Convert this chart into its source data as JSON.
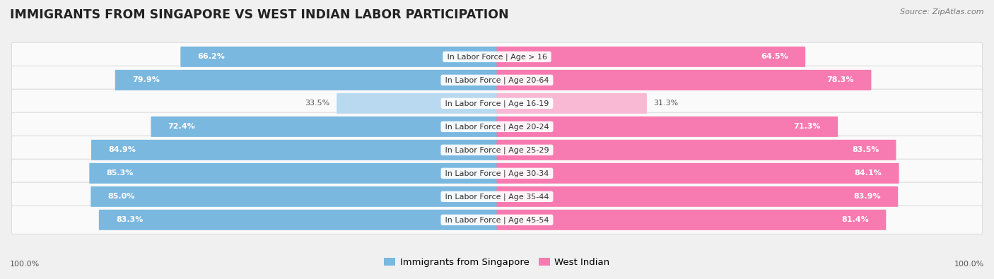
{
  "title": "IMMIGRANTS FROM SINGAPORE VS WEST INDIAN LABOR PARTICIPATION",
  "source": "Source: ZipAtlas.com",
  "categories": [
    "In Labor Force | Age > 16",
    "In Labor Force | Age 20-64",
    "In Labor Force | Age 16-19",
    "In Labor Force | Age 20-24",
    "In Labor Force | Age 25-29",
    "In Labor Force | Age 30-34",
    "In Labor Force | Age 35-44",
    "In Labor Force | Age 45-54"
  ],
  "singapore_values": [
    66.2,
    79.9,
    33.5,
    72.4,
    84.9,
    85.3,
    85.0,
    83.3
  ],
  "westindian_values": [
    64.5,
    78.3,
    31.3,
    71.3,
    83.5,
    84.1,
    83.9,
    81.4
  ],
  "singapore_color": "#7ab8e0",
  "westindian_color": "#f77ab0",
  "singapore_color_light": "#b8d9ef",
  "westindian_color_light": "#f9b8d3",
  "background_color": "#f0f0f0",
  "row_bg_color": "#fafafa",
  "row_border_color": "#dddddd",
  "bar_height": 0.72,
  "label_fontsize": 8.0,
  "title_fontsize": 12.5,
  "legend_fontsize": 9.5,
  "max_value": 100.0,
  "footer_label": "100.0%"
}
